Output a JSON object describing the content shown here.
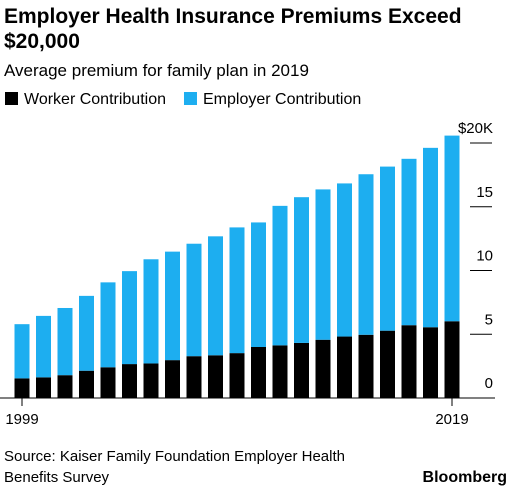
{
  "chart_data": {
    "type": "stacked-bar",
    "title": "Employer Health Insurance Premiums Exceed $20,000",
    "subtitle": "Average premium for family plan in 2019",
    "categories": [
      "1999",
      null,
      null,
      null,
      null,
      null,
      null,
      null,
      null,
      null,
      null,
      null,
      null,
      null,
      null,
      null,
      null,
      null,
      null,
      null,
      "2019"
    ],
    "series": [
      {
        "name": "Worker Contribution",
        "color": "#000000",
        "values": [
          1.54,
          1.62,
          1.79,
          2.14,
          2.41,
          2.66,
          2.71,
          2.97,
          3.28,
          3.35,
          3.52,
          4.0,
          4.13,
          4.32,
          4.57,
          4.82,
          4.96,
          5.28,
          5.71,
          5.55,
          6.02
        ]
      },
      {
        "name": "Employer Contribution",
        "color": "#1daef0",
        "values": [
          4.25,
          4.82,
          5.27,
          5.87,
          6.66,
          7.29,
          8.17,
          8.51,
          8.82,
          9.33,
          9.86,
          9.77,
          10.94,
          11.43,
          11.79,
          12.01,
          12.59,
          12.87,
          13.05,
          14.07,
          14.56
        ]
      }
    ],
    "ylim": [
      0,
      20
    ],
    "yticks": [
      0,
      5,
      10,
      15,
      {
        "value": 20,
        "label": "$20K"
      }
    ],
    "source": "Source: Kaiser Family Foundation Employer Health Benefits Survey",
    "brand": "Bloomberg"
  }
}
